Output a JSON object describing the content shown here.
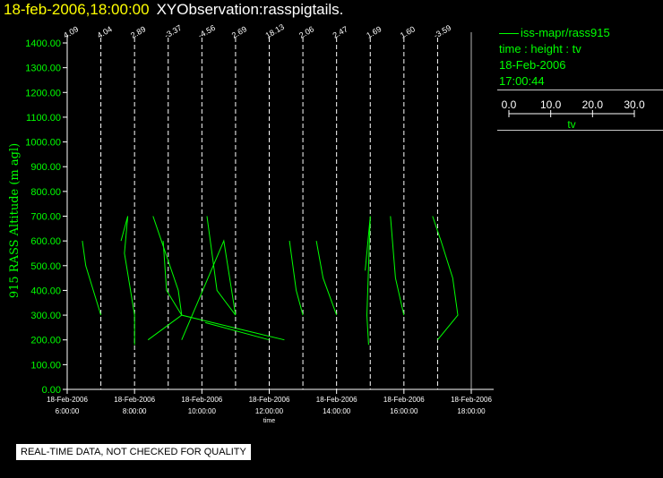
{
  "header": {
    "datetime": "18-feb-2006,18:00:00",
    "observation": "XYObservation:rasspigtails."
  },
  "legend": {
    "series_label": "iss-mapr/rass915",
    "description": "time : height : tv",
    "date": "18-Feb-2006",
    "time": "17:00:44",
    "scale_ticks": [
      "0.0",
      "10.0",
      "20.0",
      "30.0"
    ],
    "scale_label": "tv"
  },
  "footer": {
    "notice": "REAL-TIME DATA, NOT CHECKED FOR QUALITY"
  },
  "colors": {
    "title": "#ffff00",
    "series": "#00ff00",
    "axis": "#ffffff",
    "background": "#000000"
  },
  "chart_data": {
    "type": "line",
    "ylabel": "915 RASS Altitude (m agl)",
    "xlabel": "time",
    "xlim": [
      "2006-02-18 06:00",
      "2006-02-18 18:00"
    ],
    "ylim": [
      0,
      1400
    ],
    "y_ticks": [
      "0.00",
      "100.00",
      "200.00",
      "300.00",
      "400.00",
      "500.00",
      "600.00",
      "700.00",
      "800.00",
      "900.00",
      "1000.00",
      "1100.00",
      "1200.00",
      "1300.00",
      "1400.00"
    ],
    "x_ticks": [
      {
        "t": "2006-02-18 06:00",
        "date": "18-Feb-2006",
        "time": "6:00:00"
      },
      {
        "t": "2006-02-18 08:00",
        "date": "18-Feb-2006",
        "time": "8:00:00"
      },
      {
        "t": "2006-02-18 10:00",
        "date": "18-Feb-2006",
        "time": "10:00:00"
      },
      {
        "t": "2006-02-18 12:00",
        "date": "18-Feb-2006",
        "time": "12:00:00"
      },
      {
        "t": "2006-02-18 14:00",
        "date": "18-Feb-2006",
        "time": "14:00:00"
      },
      {
        "t": "2006-02-18 16:00",
        "date": "18-Feb-2006",
        "time": "16:00:00"
      },
      {
        "t": "2006-02-18 18:00",
        "date": "18-Feb-2006",
        "time": "18:00:00"
      }
    ],
    "profiles": [
      {
        "t": "2006-02-18 06:00",
        "label": "4.09",
        "points": []
      },
      {
        "t": "2006-02-18 07:00",
        "label": "4.04",
        "points": [
          [
            -0.55,
            600
          ],
          [
            -0.45,
            500
          ],
          [
            0,
            300
          ]
        ]
      },
      {
        "t": "2006-02-18 08:00",
        "label": "2.89",
        "points": [
          [
            -0.4,
            600
          ],
          [
            -0.2,
            700
          ],
          [
            -0.3,
            550
          ],
          [
            0,
            300
          ],
          [
            0,
            180
          ]
        ]
      },
      {
        "t": "2006-02-18 09:00",
        "label": "-3.37",
        "points": [
          [
            -0.15,
            600
          ],
          [
            -0.05,
            400
          ],
          [
            0.4,
            300
          ],
          [
            0.3,
            400
          ],
          [
            -0.45,
            700
          ]
        ]
      },
      {
        "t": "2006-02-18 10:00",
        "label": "-4.56",
        "points": [
          [
            -1.6,
            200
          ],
          [
            -0.6,
            300
          ],
          [
            2.45,
            200
          ]
        ]
      },
      {
        "t": "2006-02-18 11:00",
        "label": "2.69",
        "points": [
          [
            -0.85,
            700
          ],
          [
            -0.55,
            400
          ],
          [
            0,
            300
          ],
          [
            -0.35,
            600
          ],
          [
            -1.6,
            200
          ]
        ]
      },
      {
        "t": "2006-02-18 12:00",
        "label": "18.13",
        "points": [
          [
            -1.9,
            270
          ],
          [
            0,
            200
          ]
        ]
      },
      {
        "t": "2006-02-18 13:00",
        "label": "2.06",
        "points": [
          [
            -0.4,
            600
          ],
          [
            -0.2,
            400
          ],
          [
            0,
            300
          ]
        ]
      },
      {
        "t": "2006-02-18 14:00",
        "label": "2.47",
        "points": [
          [
            -0.6,
            600
          ],
          [
            -0.4,
            450
          ],
          [
            0,
            300
          ]
        ]
      },
      {
        "t": "2006-02-18 15:00",
        "label": "1.69",
        "points": [
          [
            -0.15,
            480
          ],
          [
            0,
            700
          ],
          [
            -0.1,
            300
          ],
          [
            -0.05,
            180
          ]
        ]
      },
      {
        "t": "2006-02-18 16:00",
        "label": "1.60",
        "points": [
          [
            -0.4,
            700
          ],
          [
            -0.25,
            450
          ],
          [
            0,
            300
          ]
        ]
      },
      {
        "t": "2006-02-18 17:00",
        "label": "-3.59",
        "points": [
          [
            -0.15,
            700
          ],
          [
            0.1,
            600
          ],
          [
            0.45,
            450
          ],
          [
            0.6,
            300
          ],
          [
            0,
            200
          ]
        ]
      }
    ]
  }
}
